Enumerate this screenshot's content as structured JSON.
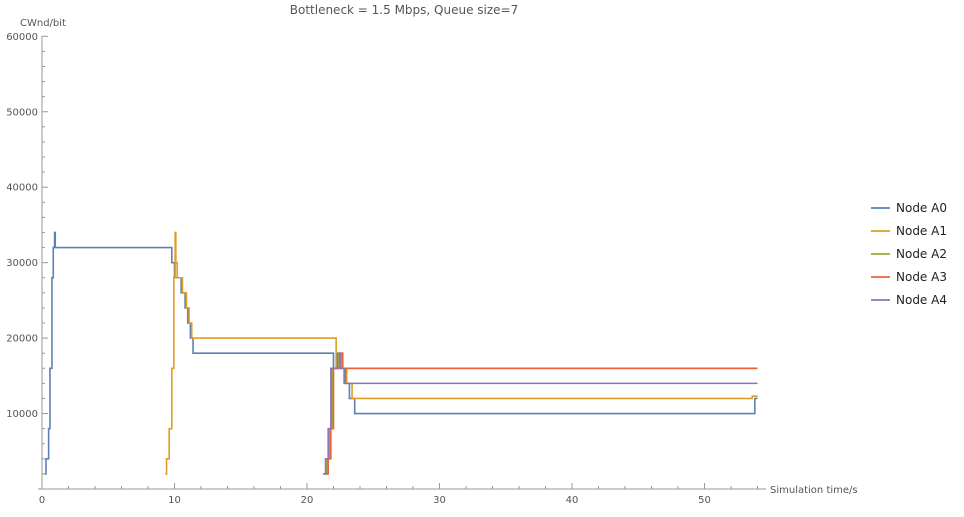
{
  "chart_data": {
    "type": "line",
    "title": "Bottleneck = 1.5 Mbps, Queue size=7",
    "xlabel": "Simulation time/s",
    "ylabel": "CWnd/bit",
    "xlim": [
      0,
      55
    ],
    "ylim": [
      0,
      60000
    ],
    "x_ticks": [
      0,
      10,
      20,
      30,
      40,
      50
    ],
    "y_ticks": [
      10000,
      20000,
      30000,
      40000,
      50000,
      60000
    ],
    "y_tick_labels": [
      "10000",
      "20000",
      "30000",
      "40000",
      "50000",
      "60000"
    ],
    "x_tick_labels": [
      "0",
      "10",
      "20",
      "30",
      "40",
      "50"
    ],
    "legend_position": "right",
    "series": [
      {
        "name": "Node A0",
        "color": "#5E81B5",
        "points": [
          [
            0.2,
            2000
          ],
          [
            0.3,
            2000
          ],
          [
            0.3,
            4000
          ],
          [
            0.5,
            4000
          ],
          [
            0.5,
            8000
          ],
          [
            0.6,
            8000
          ],
          [
            0.6,
            16000
          ],
          [
            0.75,
            16000
          ],
          [
            0.75,
            28000
          ],
          [
            0.85,
            28000
          ],
          [
            0.85,
            32000
          ],
          [
            0.95,
            32000
          ],
          [
            0.95,
            34000
          ],
          [
            1.0,
            34000
          ],
          [
            1.0,
            32000
          ],
          [
            9.8,
            32000
          ],
          [
            9.8,
            30000
          ],
          [
            10.0,
            30000
          ],
          [
            10.0,
            28000
          ],
          [
            10.5,
            28000
          ],
          [
            10.5,
            26000
          ],
          [
            10.8,
            26000
          ],
          [
            10.8,
            24000
          ],
          [
            11.0,
            24000
          ],
          [
            11.0,
            22000
          ],
          [
            11.2,
            22000
          ],
          [
            11.2,
            20000
          ],
          [
            11.4,
            20000
          ],
          [
            11.4,
            18000
          ],
          [
            22.0,
            18000
          ],
          [
            22.0,
            16000
          ],
          [
            22.9,
            16000
          ],
          [
            22.9,
            14000
          ],
          [
            23.2,
            14000
          ],
          [
            23.2,
            12000
          ],
          [
            23.6,
            12000
          ],
          [
            23.6,
            10000
          ],
          [
            53.8,
            10000
          ],
          [
            53.8,
            12000
          ],
          [
            54.0,
            12000
          ]
        ]
      },
      {
        "name": "Node A1",
        "color": "#E19C24",
        "points": [
          [
            9.3,
            2000
          ],
          [
            9.4,
            2000
          ],
          [
            9.4,
            4000
          ],
          [
            9.6,
            4000
          ],
          [
            9.6,
            8000
          ],
          [
            9.8,
            8000
          ],
          [
            9.8,
            16000
          ],
          [
            9.95,
            16000
          ],
          [
            9.95,
            28000
          ],
          [
            10.05,
            28000
          ],
          [
            10.05,
            34000
          ],
          [
            10.1,
            34000
          ],
          [
            10.1,
            30000
          ],
          [
            10.2,
            30000
          ],
          [
            10.2,
            28000
          ],
          [
            10.6,
            28000
          ],
          [
            10.6,
            26000
          ],
          [
            10.9,
            26000
          ],
          [
            10.9,
            24000
          ],
          [
            11.1,
            24000
          ],
          [
            11.1,
            22000
          ],
          [
            11.3,
            22000
          ],
          [
            11.3,
            20000
          ],
          [
            22.2,
            20000
          ],
          [
            22.2,
            16000
          ],
          [
            23.0,
            16000
          ],
          [
            23.0,
            14000
          ],
          [
            23.4,
            14000
          ],
          [
            23.4,
            12000
          ],
          [
            53.6,
            12000
          ],
          [
            53.6,
            12300
          ],
          [
            54.0,
            12300
          ]
        ]
      },
      {
        "name": "Node A2",
        "color": "#8FB032",
        "points": [
          [
            21.3,
            2000
          ],
          [
            21.5,
            2000
          ],
          [
            21.5,
            4000
          ],
          [
            21.7,
            4000
          ],
          [
            21.7,
            8000
          ],
          [
            21.9,
            8000
          ],
          [
            21.9,
            16000
          ],
          [
            22.4,
            16000
          ],
          [
            22.4,
            18000
          ],
          [
            22.6,
            18000
          ],
          [
            22.6,
            16000
          ],
          [
            54.0,
            16000
          ]
        ]
      },
      {
        "name": "Node A3",
        "color": "#EB6235",
        "points": [
          [
            21.4,
            2000
          ],
          [
            21.6,
            2000
          ],
          [
            21.6,
            4000
          ],
          [
            21.8,
            4000
          ],
          [
            21.8,
            8000
          ],
          [
            22.0,
            8000
          ],
          [
            22.0,
            16000
          ],
          [
            22.5,
            16000
          ],
          [
            22.5,
            18000
          ],
          [
            22.7,
            18000
          ],
          [
            22.7,
            16000
          ],
          [
            54.0,
            16000
          ]
        ]
      },
      {
        "name": "Node A4",
        "color": "#8778B3",
        "points": [
          [
            21.2,
            2000
          ],
          [
            21.4,
            2000
          ],
          [
            21.4,
            4000
          ],
          [
            21.6,
            4000
          ],
          [
            21.6,
            8000
          ],
          [
            21.8,
            8000
          ],
          [
            21.8,
            16000
          ],
          [
            22.3,
            16000
          ],
          [
            22.3,
            18000
          ],
          [
            22.5,
            18000
          ],
          [
            22.5,
            16000
          ],
          [
            22.8,
            16000
          ],
          [
            22.8,
            14000
          ],
          [
            54.0,
            14000
          ]
        ]
      }
    ]
  }
}
